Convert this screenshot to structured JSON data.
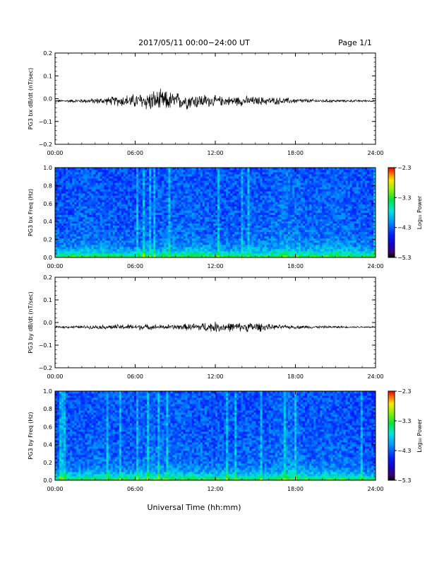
{
  "header": {
    "title": "2017/05/11  00:00−24:00 UT",
    "page": "Page 1/1"
  },
  "footer": {
    "xlabel": "Universal Time (hh:mm)"
  },
  "colorbar": {
    "label": "Log₁₀ Power",
    "ticks": [
      "−2.3",
      "−3.3",
      "−4.3",
      "−5.3"
    ],
    "range": [
      -5.3,
      -2.3
    ]
  },
  "chart_data": [
    {
      "type": "line",
      "ylabel": "PG3 bx dB/dt (nT/sec)",
      "xlim": [
        0,
        24
      ],
      "ylim": [
        -0.2,
        0.2
      ],
      "x_ticks": [
        "00:00",
        "06:00",
        "12:00",
        "18:00",
        "24:00"
      ],
      "y_ticks": [
        "0.2",
        "0.1",
        "0.0",
        "−0.1",
        "−0.2"
      ],
      "series": [
        {
          "baseline": -0.01,
          "x": [
            0,
            1,
            2,
            3,
            4,
            5,
            6,
            7,
            8,
            9,
            10,
            11,
            12,
            13,
            14,
            15,
            16,
            17,
            18,
            19,
            20,
            21,
            22,
            23,
            24
          ],
          "amplitude": [
            0.004,
            0.005,
            0.007,
            0.01,
            0.014,
            0.02,
            0.025,
            0.035,
            0.038,
            0.03,
            0.028,
            0.025,
            0.018,
            0.016,
            0.018,
            0.015,
            0.014,
            0.012,
            0.009,
            0.007,
            0.006,
            0.005,
            0.004,
            0.004,
            0.003
          ]
        }
      ]
    },
    {
      "type": "heatmap",
      "ylabel": "PG3 bx Freq (Hz)",
      "xlim": [
        0,
        24
      ],
      "ylim": [
        0,
        1.0
      ],
      "x_ticks": [
        "00:00",
        "06:00",
        "12:00",
        "18:00",
        "24:00"
      ],
      "y_ticks": [
        "1.0",
        "0.8",
        "0.6",
        "0.4",
        "0.2",
        "0.0"
      ],
      "color_range": [
        -5.3,
        -2.3
      ],
      "activity": [
        {
          "t": 0,
          "level": 0.45
        },
        {
          "t": 2,
          "level": 0.55
        },
        {
          "t": 4,
          "level": 0.5
        },
        {
          "t": 6,
          "level": 0.45
        },
        {
          "t": 8,
          "level": 0.55
        },
        {
          "t": 10,
          "level": 0.6
        },
        {
          "t": 12,
          "level": 0.5
        },
        {
          "t": 14,
          "level": 0.5
        },
        {
          "t": 16,
          "level": 0.55
        },
        {
          "t": 17.5,
          "level": 0.7
        },
        {
          "t": 19,
          "level": 0.55
        },
        {
          "t": 21,
          "level": 0.6
        },
        {
          "t": 23,
          "level": 0.5
        },
        {
          "t": 24,
          "level": 0.4
        }
      ]
    },
    {
      "type": "line",
      "ylabel": "PG3 by dB/dt (nT/sec)",
      "xlim": [
        0,
        24
      ],
      "ylim": [
        -0.2,
        0.2
      ],
      "x_ticks": [
        "00:00",
        "06:00",
        "12:00",
        "18:00",
        "24:00"
      ],
      "y_ticks": [
        "0.2",
        "0.1",
        "0.0",
        "−0.1",
        "−0.2"
      ],
      "series": [
        {
          "baseline": -0.02,
          "x": [
            0,
            1,
            2,
            3,
            4,
            5,
            6,
            7,
            8,
            9,
            10,
            11,
            12,
            13,
            14,
            15,
            16,
            17,
            18,
            19,
            20,
            21,
            22,
            23,
            24
          ],
          "amplitude": [
            0.004,
            0.004,
            0.005,
            0.006,
            0.008,
            0.01,
            0.01,
            0.009,
            0.008,
            0.009,
            0.012,
            0.016,
            0.018,
            0.016,
            0.015,
            0.018,
            0.01,
            0.007,
            0.006,
            0.005,
            0.004,
            0.004,
            0.003,
            0.003,
            0.003
          ]
        }
      ]
    },
    {
      "type": "heatmap",
      "ylabel": "PG3 by Freq (Hz)",
      "xlim": [
        0,
        24
      ],
      "ylim": [
        0,
        1.0
      ],
      "x_ticks": [
        "00:00",
        "06:00",
        "12:00",
        "18:00",
        "24:00"
      ],
      "y_ticks": [
        "1.0",
        "0.8",
        "0.6",
        "0.4",
        "0.2",
        "0.0"
      ],
      "color_range": [
        -5.3,
        -2.3
      ],
      "activity": [
        {
          "t": 0,
          "level": 0.45
        },
        {
          "t": 2,
          "level": 0.5
        },
        {
          "t": 4,
          "level": 0.55
        },
        {
          "t": 6,
          "level": 0.5
        },
        {
          "t": 7,
          "level": 0.6
        },
        {
          "t": 10,
          "level": 0.55
        },
        {
          "t": 12,
          "level": 0.5
        },
        {
          "t": 14,
          "level": 0.5
        },
        {
          "t": 16,
          "level": 0.5
        },
        {
          "t": 17.5,
          "level": 0.7
        },
        {
          "t": 19,
          "level": 0.5
        },
        {
          "t": 21,
          "level": 0.55
        },
        {
          "t": 23,
          "level": 0.45
        },
        {
          "t": 24,
          "level": 0.35
        }
      ]
    }
  ]
}
